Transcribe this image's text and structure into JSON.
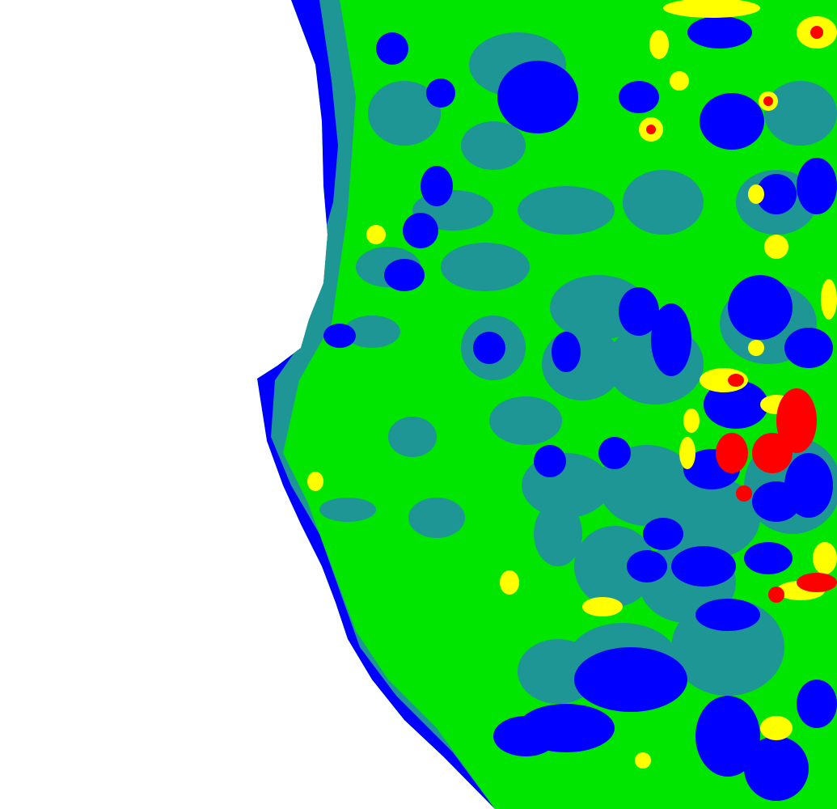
{
  "map": {
    "background_color": "#ffffff",
    "classes": [
      {
        "key": "very-low",
        "color": "#0000ff"
      },
      {
        "key": "low",
        "color": "#1e9696"
      },
      {
        "key": "medium",
        "color": "#00e600"
      },
      {
        "key": "high",
        "color": "#ffff00"
      },
      {
        "key": "very-high",
        "color": "#ff0000"
      }
    ],
    "dominant_class": "medium"
  }
}
